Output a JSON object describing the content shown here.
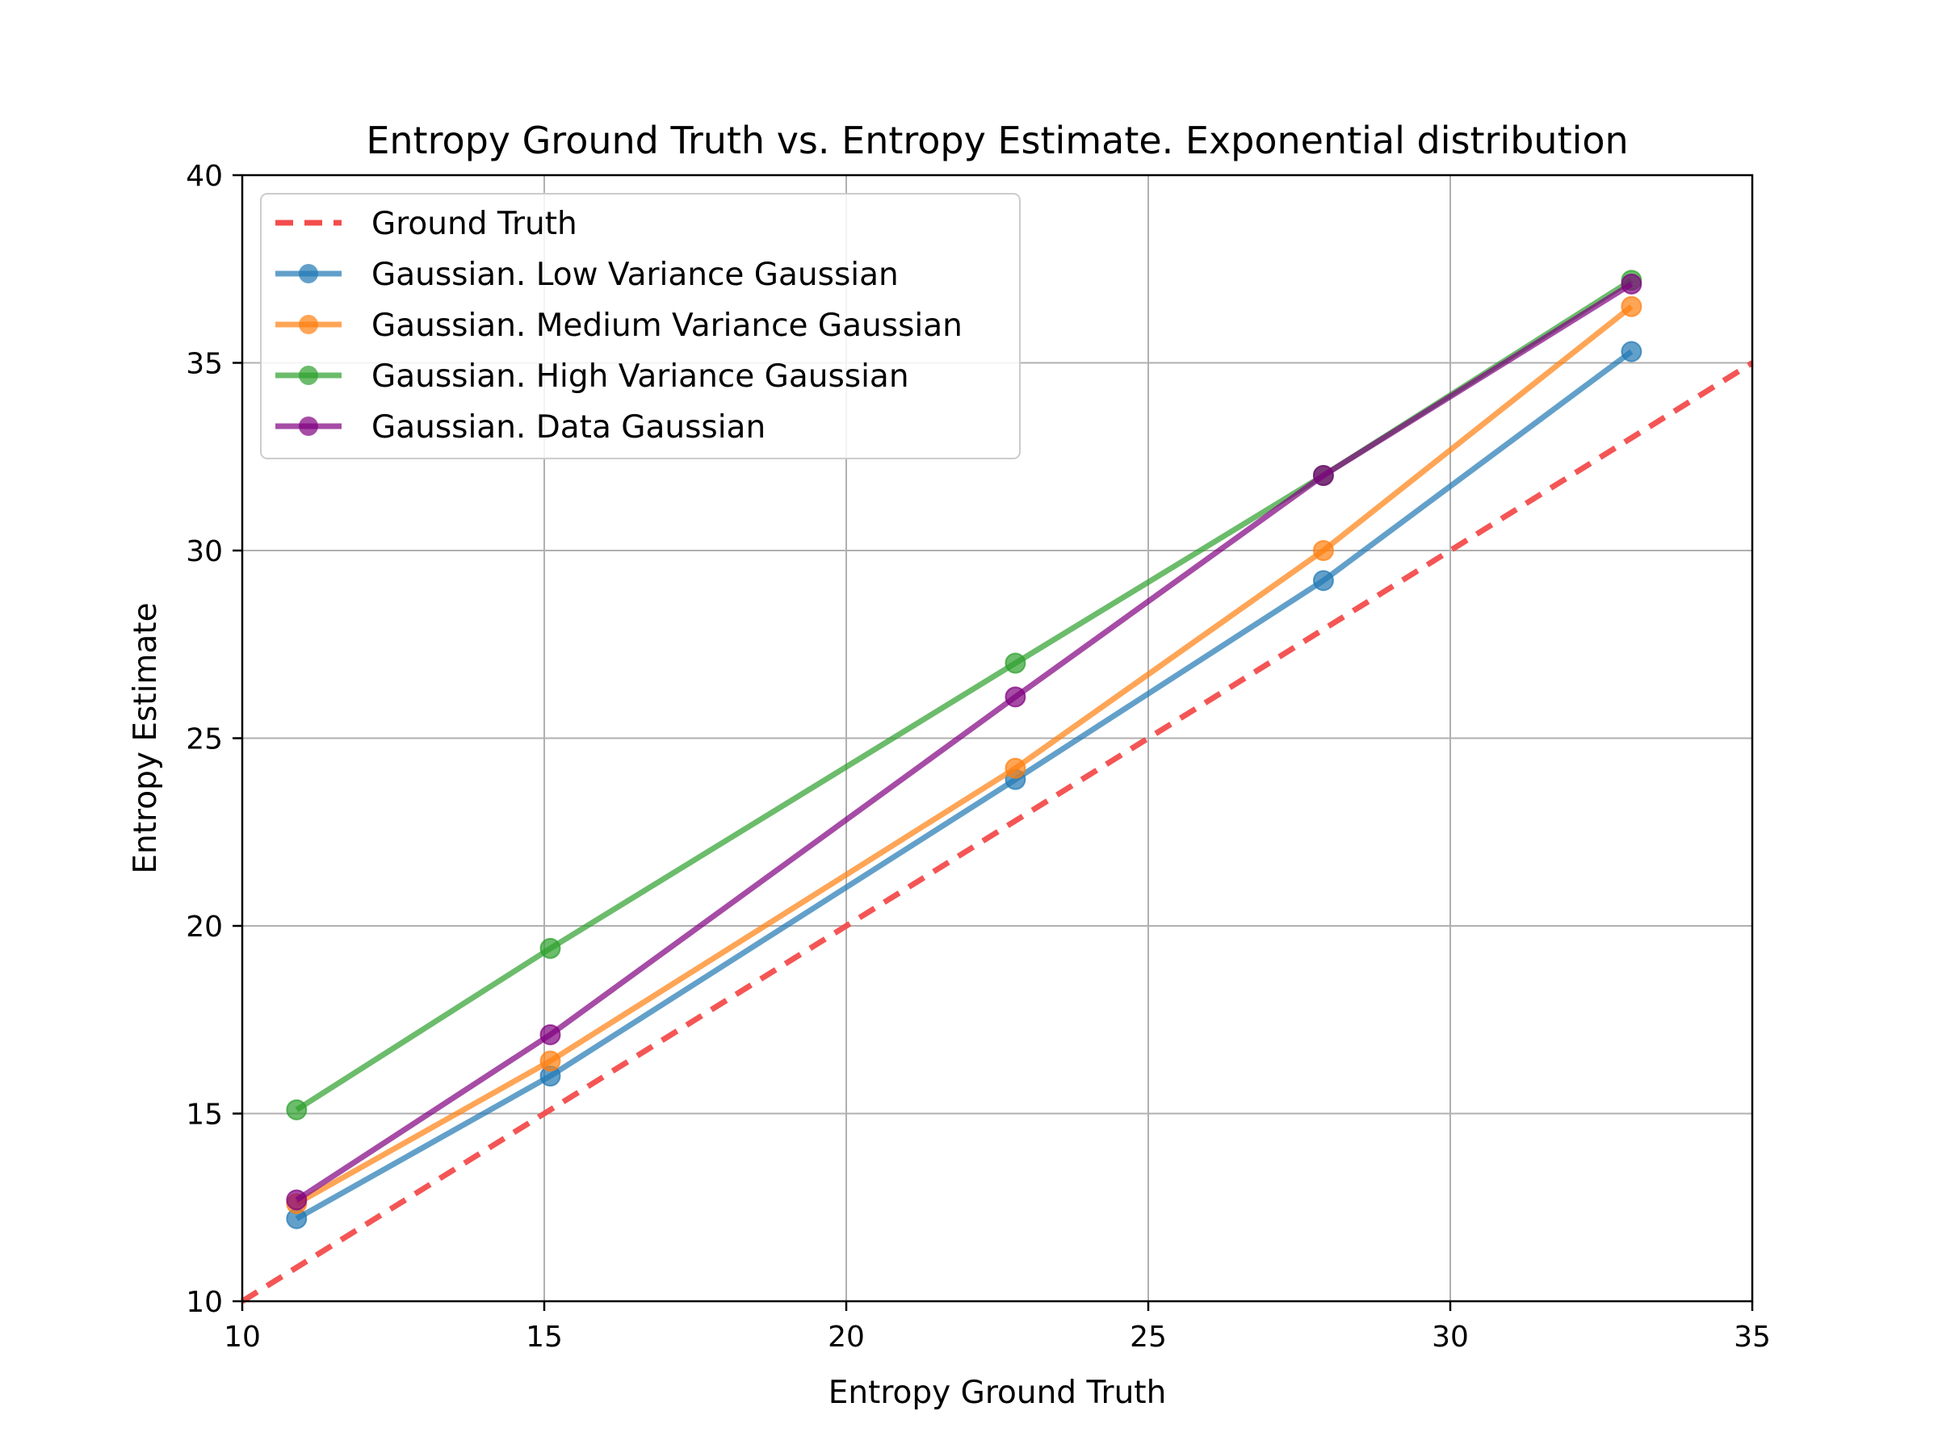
{
  "chart_data": {
    "type": "line",
    "title": "Entropy Ground Truth vs. Entropy Estimate. Exponential distribution",
    "xlabel": "Entropy Ground Truth",
    "ylabel": "Entropy Estimate",
    "xlim": [
      10,
      35
    ],
    "ylim": [
      10,
      40
    ],
    "xticks": [
      10,
      15,
      20,
      25,
      30,
      35
    ],
    "yticks": [
      10,
      15,
      20,
      25,
      30,
      35,
      40
    ],
    "grid": true,
    "legend_position": "upper-left",
    "reference_line": {
      "name": "Ground Truth",
      "x": [
        10,
        35
      ],
      "y": [
        10,
        35
      ],
      "color": "#f44c4c",
      "style": "dashed"
    },
    "series": [
      {
        "name": "Gaussian. Low Variance Gaussian",
        "color": "#1f77b4",
        "x": [
          10.9,
          15.1,
          22.8,
          27.9,
          33.0
        ],
        "y": [
          12.2,
          16.0,
          23.9,
          29.2,
          35.3
        ]
      },
      {
        "name": "Gaussian. Medium Variance Gaussian",
        "color": "#ff7f0e",
        "x": [
          10.9,
          15.1,
          22.8,
          27.9,
          33.0
        ],
        "y": [
          12.6,
          16.4,
          24.2,
          30.0,
          36.5
        ]
      },
      {
        "name": "Gaussian. High Variance Gaussian",
        "color": "#2ca02c",
        "x": [
          10.9,
          15.1,
          22.8,
          27.9,
          33.0
        ],
        "y": [
          15.1,
          19.4,
          27.0,
          32.0,
          37.2
        ]
      },
      {
        "name": "Gaussian. Data Gaussian",
        "color": "#800080",
        "x": [
          10.9,
          15.1,
          22.8,
          27.9,
          33.0
        ],
        "y": [
          12.7,
          17.1,
          26.1,
          32.0,
          37.1
        ]
      }
    ]
  }
}
